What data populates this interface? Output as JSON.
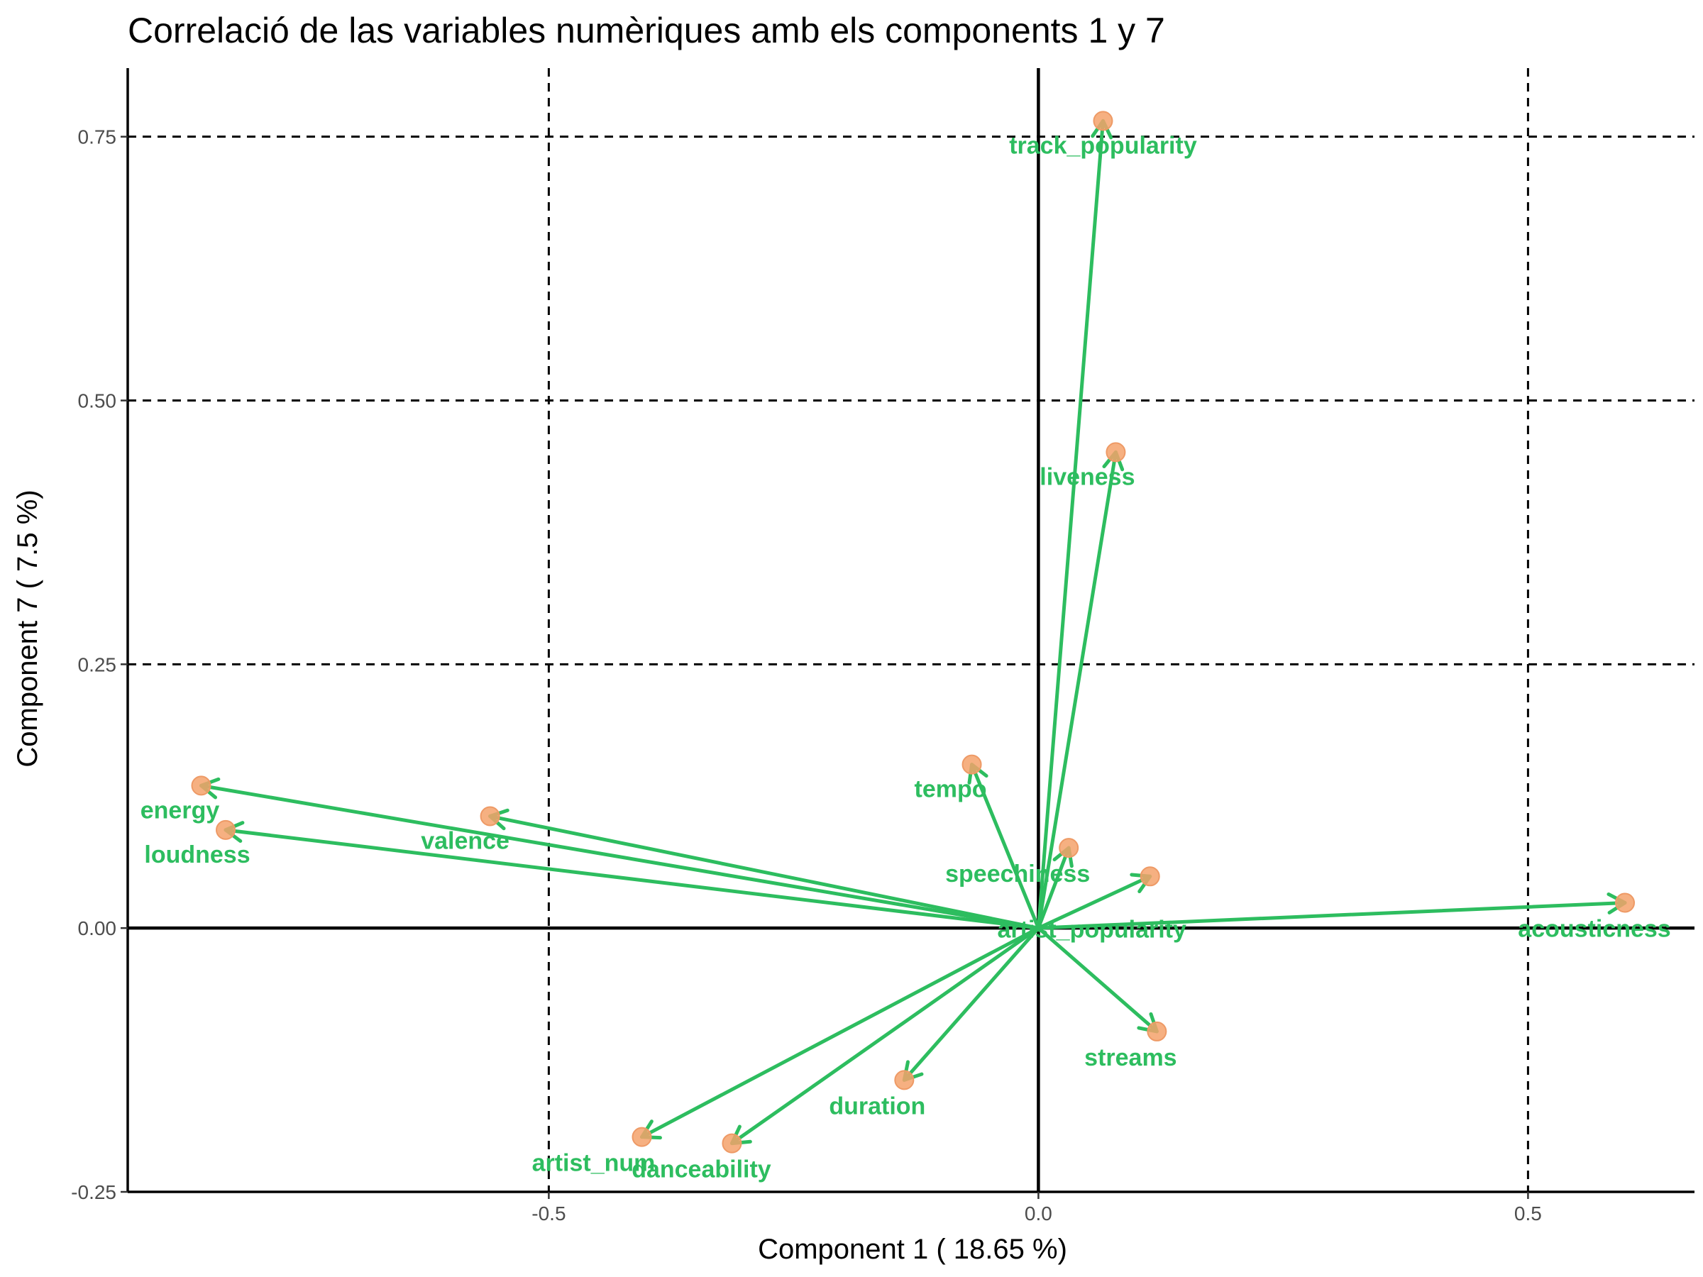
{
  "chart_data": {
    "type": "scatter",
    "title": "Correlació de las variables numèriques amb els components 1 y 7",
    "xlabel": "Component 1 ( 18.65 %)",
    "ylabel": "Component 7 ( 7.5 %)",
    "xlim": [
      -0.93,
      0.67
    ],
    "ylim": [
      -0.25,
      0.815
    ],
    "xticks": [
      -0.5,
      0.0,
      0.5
    ],
    "xtick_labels": [
      "-0.5",
      "0.0",
      "0.5"
    ],
    "yticks": [
      -0.25,
      0.0,
      0.25,
      0.5,
      0.75
    ],
    "ytick_labels": [
      "-0.25",
      "0.00",
      "0.25",
      "0.50",
      "0.75"
    ],
    "grid": "dashed lines at major ticks",
    "arrow_color": "#2dbd5f",
    "point_color": "#f5a26b",
    "points": [
      {
        "name": "track_popularity",
        "x": 0.066,
        "y": 0.765
      },
      {
        "name": "liveness",
        "x": 0.079,
        "y": 0.451
      },
      {
        "name": "tempo",
        "x": -0.068,
        "y": 0.155
      },
      {
        "name": "speechiness",
        "x": 0.031,
        "y": 0.076
      },
      {
        "name": "artist_popularity",
        "x": 0.114,
        "y": 0.049
      },
      {
        "name": "acousticness",
        "x": 0.599,
        "y": 0.024
      },
      {
        "name": "energy",
        "x": -0.855,
        "y": 0.135
      },
      {
        "name": "loudness",
        "x": -0.83,
        "y": 0.093
      },
      {
        "name": "valence",
        "x": -0.56,
        "y": 0.106
      },
      {
        "name": "streams",
        "x": 0.121,
        "y": -0.098
      },
      {
        "name": "duration",
        "x": -0.137,
        "y": -0.144
      },
      {
        "name": "artist_num",
        "x": -0.405,
        "y": -0.198
      },
      {
        "name": "danceability",
        "x": -0.313,
        "y": -0.204
      }
    ]
  }
}
